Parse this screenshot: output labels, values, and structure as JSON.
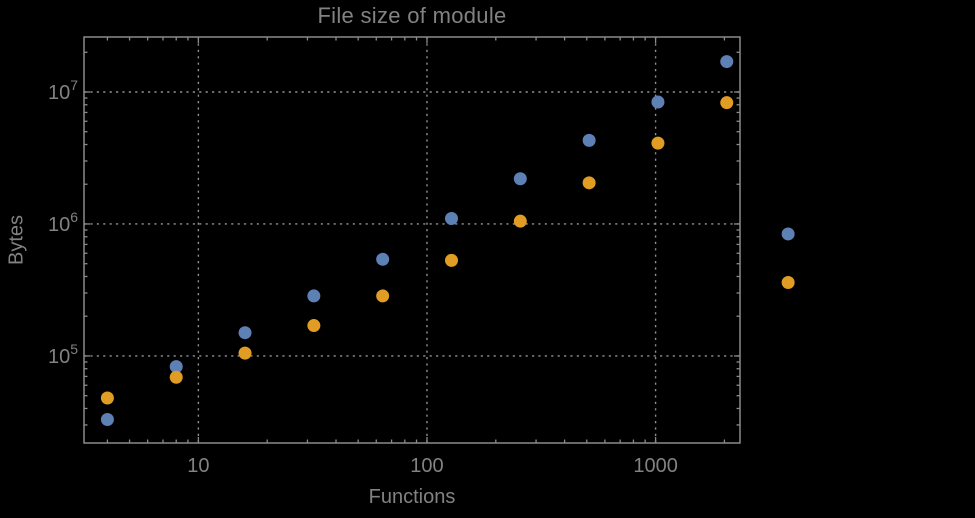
{
  "title": "File size of module",
  "colors": {
    "background": "#000000",
    "text": "#828282",
    "frame": "#8a8a8a",
    "grid": "#8f8f8f",
    "series_blue": "#5E81B5",
    "series_orange": "#E19C24"
  },
  "chart_data": {
    "type": "scatter",
    "title": "File size of module",
    "xlabel": "Functions",
    "ylabel": "Bytes",
    "xscale": "log",
    "yscale": "log",
    "grid": "dotted",
    "legend": "none",
    "xlim": [
      3.16,
      2340
    ],
    "ylim": [
      21900,
      26100000
    ],
    "x_ticks": [
      10,
      100,
      1000
    ],
    "x_tick_labels": [
      "10",
      "100",
      "1000"
    ],
    "y_ticks": [
      100000,
      1000000,
      10000000
    ],
    "y_tick_labels": [
      {
        "base": "10",
        "exp": "5"
      },
      {
        "base": "10",
        "exp": "6"
      },
      {
        "base": "10",
        "exp": "7"
      }
    ],
    "series": [
      {
        "name": "series-blue",
        "color": "#5E81B5",
        "points": [
          [
            4,
            33000
          ],
          [
            8,
            83000
          ],
          [
            16,
            150000
          ],
          [
            32,
            285000
          ],
          [
            64,
            540000
          ],
          [
            128,
            1100000
          ],
          [
            256,
            2200000
          ],
          [
            512,
            4300000
          ],
          [
            1024,
            8400000
          ],
          [
            2048,
            17000000
          ],
          [
            3800,
            840000
          ]
        ]
      },
      {
        "name": "series-orange",
        "color": "#E19C24",
        "points": [
          [
            4,
            48000
          ],
          [
            8,
            69000
          ],
          [
            16,
            105000
          ],
          [
            32,
            170000
          ],
          [
            64,
            285000
          ],
          [
            128,
            530000
          ],
          [
            256,
            1050000
          ],
          [
            512,
            2050000
          ],
          [
            1024,
            4100000
          ],
          [
            2048,
            8300000
          ],
          [
            3800,
            360000
          ]
        ]
      }
    ]
  }
}
